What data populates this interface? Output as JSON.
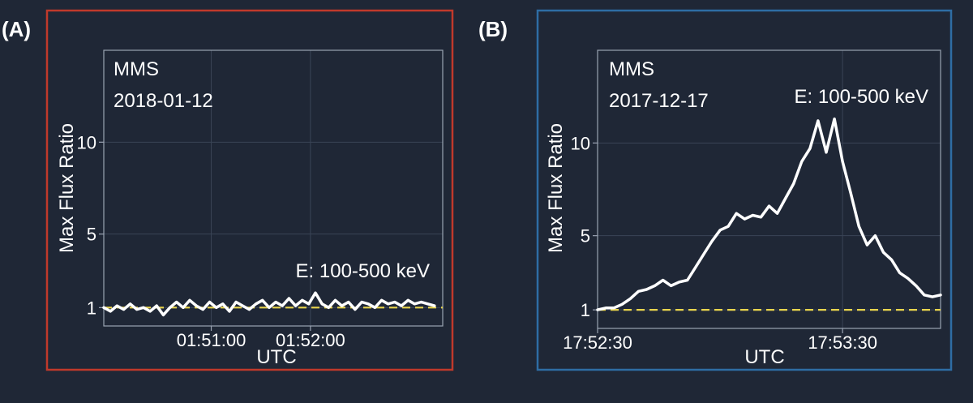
{
  "panels": [
    {
      "label": "(A)",
      "mission": "MMS",
      "date": "2018-01-12",
      "energy": "E: 100-500 keV",
      "frame_color": "#c0392b"
    },
    {
      "label": "(B)",
      "mission": "MMS",
      "date": "2017-12-17",
      "energy": "E: 100-500 keV",
      "frame_color": "#2e6da4"
    }
  ],
  "colors": {
    "background": "#1f2736",
    "axes_line": "#9aa3b2",
    "series": "#ffffff",
    "reference_line": "#e8d44d"
  },
  "chart_data": [
    {
      "type": "line",
      "title": "",
      "xlabel": "UTC",
      "ylabel": "Max Flux Ratio",
      "x_unit": "seconds after 01:49:55 UTC",
      "xlim": [
        0,
        205
      ],
      "ylim": [
        0,
        15
      ],
      "yticks": [
        1,
        5,
        10
      ],
      "xticks": [
        {
          "value": 65,
          "label": "01:51:00"
        },
        {
          "value": 125,
          "label": "01:52:00"
        }
      ],
      "grid": true,
      "series": [
        {
          "name": "",
          "x": [
            0,
            4,
            8,
            12,
            16,
            20,
            24,
            28,
            32,
            36,
            40,
            44,
            48,
            52,
            56,
            60,
            64,
            68,
            72,
            76,
            80,
            84,
            88,
            92,
            96,
            100,
            104,
            108,
            112,
            116,
            120,
            124,
            128,
            132,
            136,
            140,
            144,
            148,
            152,
            156,
            160,
            164,
            168,
            172,
            176,
            180,
            184,
            188,
            192,
            196,
            200
          ],
          "y": [
            1.0,
            0.8,
            1.1,
            0.9,
            1.2,
            0.9,
            1.0,
            0.8,
            1.1,
            0.6,
            1.0,
            1.3,
            1.0,
            1.4,
            1.1,
            0.9,
            1.3,
            1.0,
            1.2,
            0.8,
            1.3,
            1.1,
            0.9,
            1.2,
            1.4,
            1.0,
            1.3,
            1.1,
            1.5,
            1.1,
            1.4,
            1.2,
            1.8,
            1.2,
            1.0,
            1.4,
            1.1,
            1.3,
            0.9,
            1.3,
            1.2,
            1.0,
            1.4,
            1.2,
            1.3,
            1.1,
            1.4,
            1.2,
            1.3,
            1.2,
            1.1
          ]
        }
      ],
      "reference_line": {
        "y": 1,
        "style": "dashed"
      }
    },
    {
      "type": "line",
      "title": "",
      "xlabel": "UTC",
      "ylabel": "Max Flux Ratio",
      "x_unit": "seconds after 17:52:30 UTC",
      "xlim": [
        0,
        84
      ],
      "ylim": [
        0,
        15
      ],
      "yticks": [
        1,
        5,
        10
      ],
      "xticks": [
        {
          "value": 0,
          "label": "17:52:30"
        },
        {
          "value": 60,
          "label": "17:53:30"
        }
      ],
      "grid": true,
      "series": [
        {
          "name": "",
          "x": [
            0,
            2,
            4,
            6,
            8,
            10,
            12,
            14,
            16,
            18,
            20,
            22,
            24,
            26,
            28,
            30,
            32,
            34,
            36,
            38,
            40,
            42,
            44,
            46,
            48,
            50,
            52,
            54,
            56,
            58,
            60,
            62,
            64,
            66,
            68,
            70,
            72,
            74,
            76,
            78,
            80,
            82,
            84
          ],
          "y": [
            1.0,
            1.1,
            1.1,
            1.3,
            1.6,
            2.0,
            2.1,
            2.3,
            2.6,
            2.3,
            2.5,
            2.6,
            3.3,
            4.0,
            4.7,
            5.3,
            5.5,
            6.2,
            5.9,
            6.1,
            6.0,
            6.6,
            6.2,
            7.0,
            7.8,
            9.0,
            9.7,
            11.2,
            9.5,
            11.3,
            9.0,
            7.3,
            5.5,
            4.5,
            5.0,
            4.1,
            3.7,
            3.0,
            2.7,
            2.3,
            1.8,
            1.7,
            1.8
          ]
        }
      ],
      "reference_line": {
        "y": 1,
        "style": "dashed"
      }
    }
  ]
}
